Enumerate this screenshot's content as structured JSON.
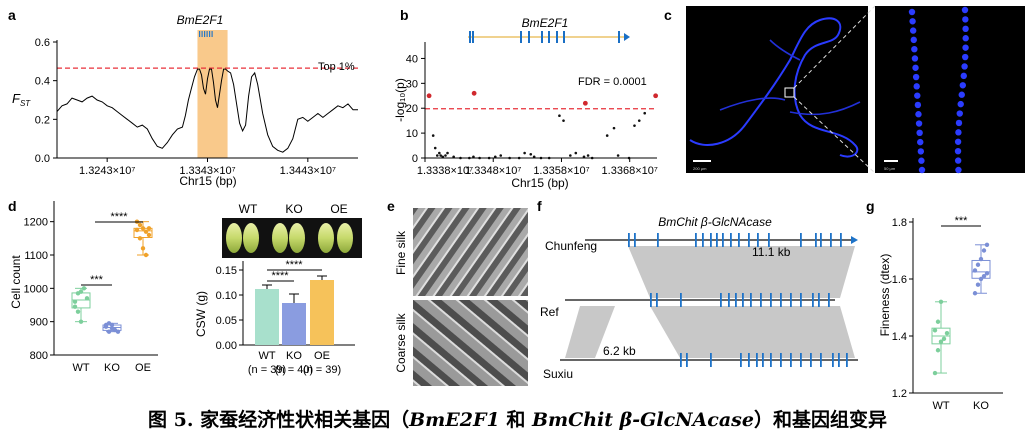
{
  "caption": {
    "prefix": "图 5.  家蚕经济性状相关基因（",
    "gene1": "BmE2F1",
    "mid": " 和 ",
    "gene2": "BmChit β-GlcNAcase",
    "suffix": "）和基因组变异"
  },
  "panels": {
    "a": {
      "letter": "a",
      "gene": "BmE2F1",
      "top_label": "Top 1%",
      "ylabel_main": "F",
      "ylabel_sub": "ST",
      "xlabel": "Chr15 (bp)",
      "yticks": [
        "0.0",
        "0.2",
        "0.4",
        "0.6"
      ],
      "xticks": [
        "1.3243×10⁷",
        "1.3343×10⁷",
        "1.3443×10⁷"
      ],
      "colors": {
        "line": "#000000",
        "threshold": "#e8313a",
        "highlight": "#f9c98b"
      }
    },
    "b": {
      "letter": "b",
      "gene": "BmE2F1",
      "fdr_label": "FDR = 0.0001",
      "ylabel": "-log₁₀(p)",
      "xlabel": "Chr15 (bp)",
      "yticks": [
        "0",
        "10",
        "20",
        "30",
        "40"
      ],
      "xticks": [
        "1.3338×10⁷",
        "1.3348×10⁷",
        "1.3358×10⁷",
        "1.3368×10⁷"
      ],
      "colors": {
        "gene_model": "#1a6fc4",
        "gene_line": "#e8b64c",
        "sig": "#d0282e",
        "nonsig": "#111111",
        "threshold": "#e8313a"
      }
    },
    "c": {
      "letter": "c",
      "scale1": "200 μm",
      "scale2": "50 μm"
    },
    "d": {
      "letter": "d",
      "box": {
        "ylabel": "Cell count",
        "yticks": [
          "800",
          "900",
          "1000",
          "1100",
          "1200"
        ],
        "xticks": [
          "WT",
          "KO",
          "OE"
        ],
        "sig1": "***",
        "sig2": "****",
        "colors": {
          "WT": "#7dcf9c",
          "KO": "#7b8fd6",
          "OE": "#f0a22a"
        }
      },
      "cocoon_labels": [
        "WT",
        "KO",
        "OE"
      ],
      "bar": {
        "ylabel": "CSW (g)",
        "yticks": [
          "0.00",
          "0.05",
          "0.10",
          "0.15"
        ],
        "categories": [
          "WT",
          "KO",
          "OE"
        ],
        "n_labels": [
          "(n = 39)",
          "(n = 40)",
          "(n = 39)"
        ],
        "sig1": "****",
        "sig2": "****",
        "colors": {
          "WT": "#a8e0cc",
          "KO": "#8a9ce0",
          "OE": "#f6c25a"
        }
      }
    },
    "e": {
      "letter": "e",
      "fine": "Fine silk",
      "coarse": "Coarse silk"
    },
    "f": {
      "letter": "f",
      "gene": "BmChit β-GlcNAcase",
      "tracks": [
        "Chunfeng",
        "Ref",
        "Suxiu"
      ],
      "len1": "11.1 kb",
      "len2": "6.2 kb",
      "colors": {
        "exon": "#1e73c8",
        "synteny": "#c8c8c8",
        "axis": "#333333"
      }
    },
    "g": {
      "letter": "g",
      "ylabel": "Fineness (dtex)",
      "yticks": [
        "1.2",
        "1.4",
        "1.6",
        "1.8"
      ],
      "xticks": [
        "WT",
        "KO"
      ],
      "sig": "***",
      "colors": {
        "WT": "#7dcf9c",
        "KO": "#7b8fd6"
      }
    }
  },
  "chart_data": [
    {
      "type": "line",
      "panel": "a",
      "ylabel": "FST",
      "xlabel": "Chr15 (bp)",
      "xlim": [
        13193000,
        13493000
      ],
      "ylim": [
        0,
        0.6
      ],
      "threshold": 0.465,
      "highlight_range": [
        13333000,
        13363000
      ],
      "series": [
        {
          "x": [
            13193000,
            13198000,
            13203000,
            13208000,
            13213000,
            13218000,
            13223000,
            13228000,
            13233000,
            13238000,
            13243000,
            13248000,
            13253000,
            13258000,
            13263000,
            13268000,
            13273000,
            13278000,
            13283000,
            13288000,
            13293000,
            13298000,
            13303000,
            13308000,
            13313000,
            13318000,
            13321000,
            13324000,
            13327000,
            13330000,
            13333000,
            13335000,
            13337000,
            13339000,
            13341000,
            13343000,
            13345000,
            13347000,
            13349000,
            13351000,
            13353000,
            13355000,
            13357000,
            13359000,
            13361000,
            13363000,
            13366000,
            13369000,
            13372000,
            13375000,
            13378000,
            13381000,
            13384000,
            13387000,
            13390000,
            13393000,
            13398000,
            13403000,
            13408000,
            13413000,
            13418000,
            13423000,
            13428000,
            13433000,
            13438000,
            13443000,
            13448000,
            13453000,
            13458000,
            13463000,
            13468000,
            13473000,
            13478000,
            13483000,
            13488000,
            13493000
          ],
          "y": [
            0.24,
            0.27,
            0.28,
            0.31,
            0.3,
            0.29,
            0.31,
            0.32,
            0.3,
            0.29,
            0.27,
            0.26,
            0.24,
            0.22,
            0.2,
            0.18,
            0.16,
            0.17,
            0.15,
            0.1,
            0.06,
            0.05,
            0.08,
            0.12,
            0.15,
            0.16,
            0.22,
            0.3,
            0.36,
            0.42,
            0.46,
            0.46,
            0.43,
            0.36,
            0.33,
            0.41,
            0.46,
            0.46,
            0.39,
            0.3,
            0.26,
            0.33,
            0.4,
            0.46,
            0.46,
            0.45,
            0.44,
            0.38,
            0.28,
            0.18,
            0.14,
            0.17,
            0.32,
            0.42,
            0.44,
            0.38,
            0.23,
            0.12,
            0.06,
            0.04,
            0.03,
            0.05,
            0.1,
            0.2,
            0.21,
            0.19,
            0.21,
            0.23,
            0.21,
            0.23,
            0.25,
            0.27,
            0.26,
            0.28,
            0.25,
            0.25
          ]
        }
      ]
    },
    {
      "type": "scatter",
      "panel": "b",
      "ylabel": "-log10(p)",
      "xlabel": "Chr15 (bp)",
      "xlim": [
        13338000,
        13372000
      ],
      "ylim": [
        0,
        45
      ],
      "threshold": 19.8,
      "series": [
        {
          "name": "significant",
          "x": [
            13338600,
            13345200,
            13361500,
            13371800
          ],
          "y": [
            25,
            26,
            22,
            25
          ]
        },
        {
          "name": "non-significant",
          "x": [
            13339200,
            13339500,
            13339800,
            13340100,
            13340300,
            13340600,
            13341000,
            13341300,
            13342200,
            13343200,
            13344500,
            13345100,
            13346000,
            13347400,
            13348300,
            13349100,
            13350400,
            13351800,
            13352600,
            13353500,
            13354000,
            13355000,
            13356200,
            13357700,
            13358300,
            13359300,
            13360100,
            13361300,
            13361900,
            13362500,
            13364700,
            13365700,
            13366300,
            13367900,
            13368700,
            13369400,
            13370200
          ],
          "y": [
            9,
            4,
            1,
            2,
            1,
            0.5,
            1,
            2,
            0.5,
            0,
            0,
            0.5,
            0,
            0,
            0.5,
            1,
            0,
            0,
            2,
            1.5,
            0.5,
            0,
            0,
            17,
            15,
            1,
            2,
            0.5,
            1,
            0,
            9,
            12,
            1,
            0,
            13,
            15,
            18
          ]
        }
      ]
    },
    {
      "type": "box",
      "panel": "d-left",
      "ylabel": "Cell count",
      "categories": [
        "WT",
        "KO",
        "OE"
      ],
      "ylim": [
        800,
        1250
      ],
      "series": [
        {
          "name": "WT",
          "values": [
            960,
            985,
            990,
            1000,
            970,
            945,
            930,
            900
          ]
        },
        {
          "name": "KO",
          "values": [
            890,
            895,
            880,
            875,
            870,
            885,
            870,
            890
          ]
        },
        {
          "name": "OE",
          "values": [
            1200,
            1190,
            1180,
            1170,
            1160,
            1175,
            1150,
            1120,
            1100,
            1180
          ]
        }
      ]
    },
    {
      "type": "bar",
      "panel": "d-right",
      "ylabel": "CSW (g)",
      "categories": [
        "WT",
        "KO",
        "OE"
      ],
      "values": [
        0.112,
        0.084,
        0.13
      ],
      "errors": [
        0.008,
        0.018,
        0.008
      ],
      "ylim": [
        0,
        0.16
      ]
    },
    {
      "type": "box",
      "panel": "g",
      "ylabel": "Fineness (dtex)",
      "categories": [
        "WT",
        "KO"
      ],
      "ylim": [
        1.2,
        1.8
      ],
      "series": [
        {
          "name": "WT",
          "values": [
            1.27,
            1.35,
            1.38,
            1.39,
            1.41,
            1.42,
            1.45,
            1.52
          ]
        },
        {
          "name": "KO",
          "values": [
            1.55,
            1.58,
            1.6,
            1.61,
            1.62,
            1.63,
            1.65,
            1.67,
            1.7,
            1.72
          ]
        }
      ]
    }
  ]
}
